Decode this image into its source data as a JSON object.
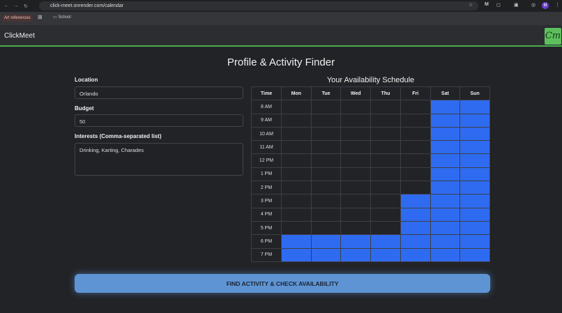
{
  "browser": {
    "url": "click-meet.onrender.com/calendar",
    "bookmarks": [
      "Art references",
      "School"
    ],
    "profile_initial": "M"
  },
  "app": {
    "brand": "ClickMeet",
    "logo_text": "Cm",
    "title": "Profile & Activity Finder"
  },
  "form": {
    "location": {
      "label": "Location",
      "value": "Orlando"
    },
    "budget": {
      "label": "Budget",
      "value": "50"
    },
    "interests": {
      "label": "Interests (Comma-separated list)",
      "value": "Drinking, Karting, Charades"
    }
  },
  "schedule": {
    "title": "Your Availability Schedule",
    "headers": [
      "Time",
      "Mon",
      "Tue",
      "Wed",
      "Thu",
      "Fri",
      "Sat",
      "Sun"
    ],
    "times": [
      "8 AM",
      "9 AM",
      "10 AM",
      "11 AM",
      "12 PM",
      "1 PM",
      "2 PM",
      "3 PM",
      "4 PM",
      "5 PM",
      "6 PM",
      "7 PM"
    ],
    "selected": [
      [
        0,
        0,
        0,
        0,
        0,
        1,
        1
      ],
      [
        0,
        0,
        0,
        0,
        0,
        1,
        1
      ],
      [
        0,
        0,
        0,
        0,
        0,
        1,
        1
      ],
      [
        0,
        0,
        0,
        0,
        0,
        1,
        1
      ],
      [
        0,
        0,
        0,
        0,
        0,
        1,
        1
      ],
      [
        0,
        0,
        0,
        0,
        0,
        1,
        1
      ],
      [
        0,
        0,
        0,
        0,
        0,
        1,
        1
      ],
      [
        0,
        0,
        0,
        0,
        1,
        1,
        1
      ],
      [
        0,
        0,
        0,
        0,
        1,
        1,
        1
      ],
      [
        0,
        0,
        0,
        0,
        1,
        1,
        1
      ],
      [
        1,
        1,
        1,
        1,
        1,
        1,
        1
      ],
      [
        1,
        1,
        1,
        1,
        1,
        1,
        1
      ]
    ],
    "selected_color": "#2f6bf0"
  },
  "action": {
    "label": "FIND ACTIVITY & CHECK AVAILABILITY"
  }
}
